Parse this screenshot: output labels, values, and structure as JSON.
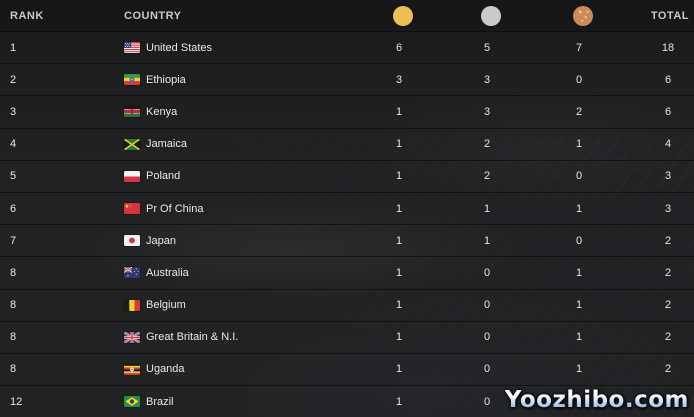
{
  "table": {
    "headers": {
      "rank": "RANK",
      "country": "COUNTRY",
      "total": "TOTAL"
    },
    "medal_icons": [
      {
        "id": "gold",
        "name": "gold-medal-icon",
        "color": "#ecbe58"
      },
      {
        "id": "silver",
        "name": "silver-medal-icon",
        "color": "#cacaca"
      },
      {
        "id": "bronze",
        "name": "bronze-medal-icon",
        "color": "#c98b5b"
      }
    ],
    "rows": [
      {
        "rank": "1",
        "flag": "us",
        "country": "United States",
        "gold": "6",
        "silver": "5",
        "bronze": "7",
        "total": "18"
      },
      {
        "rank": "2",
        "flag": "et",
        "country": "Ethiopia",
        "gold": "3",
        "silver": "3",
        "bronze": "0",
        "total": "6"
      },
      {
        "rank": "3",
        "flag": "ke",
        "country": "Kenya",
        "gold": "1",
        "silver": "3",
        "bronze": "2",
        "total": "6"
      },
      {
        "rank": "4",
        "flag": "jm",
        "country": "Jamaica",
        "gold": "1",
        "silver": "2",
        "bronze": "1",
        "total": "4"
      },
      {
        "rank": "5",
        "flag": "pl",
        "country": "Poland",
        "gold": "1",
        "silver": "2",
        "bronze": "0",
        "total": "3"
      },
      {
        "rank": "6",
        "flag": "cn",
        "country": "Pr Of China",
        "gold": "1",
        "silver": "1",
        "bronze": "1",
        "total": "3"
      },
      {
        "rank": "7",
        "flag": "jp",
        "country": "Japan",
        "gold": "1",
        "silver": "1",
        "bronze": "0",
        "total": "2"
      },
      {
        "rank": "8",
        "flag": "au",
        "country": "Australia",
        "gold": "1",
        "silver": "0",
        "bronze": "1",
        "total": "2"
      },
      {
        "rank": "8",
        "flag": "be",
        "country": "Belgium",
        "gold": "1",
        "silver": "0",
        "bronze": "1",
        "total": "2"
      },
      {
        "rank": "8",
        "flag": "gb",
        "country": "Great Britain & N.I.",
        "gold": "1",
        "silver": "0",
        "bronze": "1",
        "total": "2"
      },
      {
        "rank": "8",
        "flag": "ug",
        "country": "Uganda",
        "gold": "1",
        "silver": "0",
        "bronze": "1",
        "total": "2"
      },
      {
        "rank": "12",
        "flag": "br",
        "country": "Brazil",
        "gold": "1",
        "silver": "0",
        "bronze": null,
        "total": null
      }
    ]
  },
  "watermark": {
    "text": "Yoozhibo.com"
  }
}
